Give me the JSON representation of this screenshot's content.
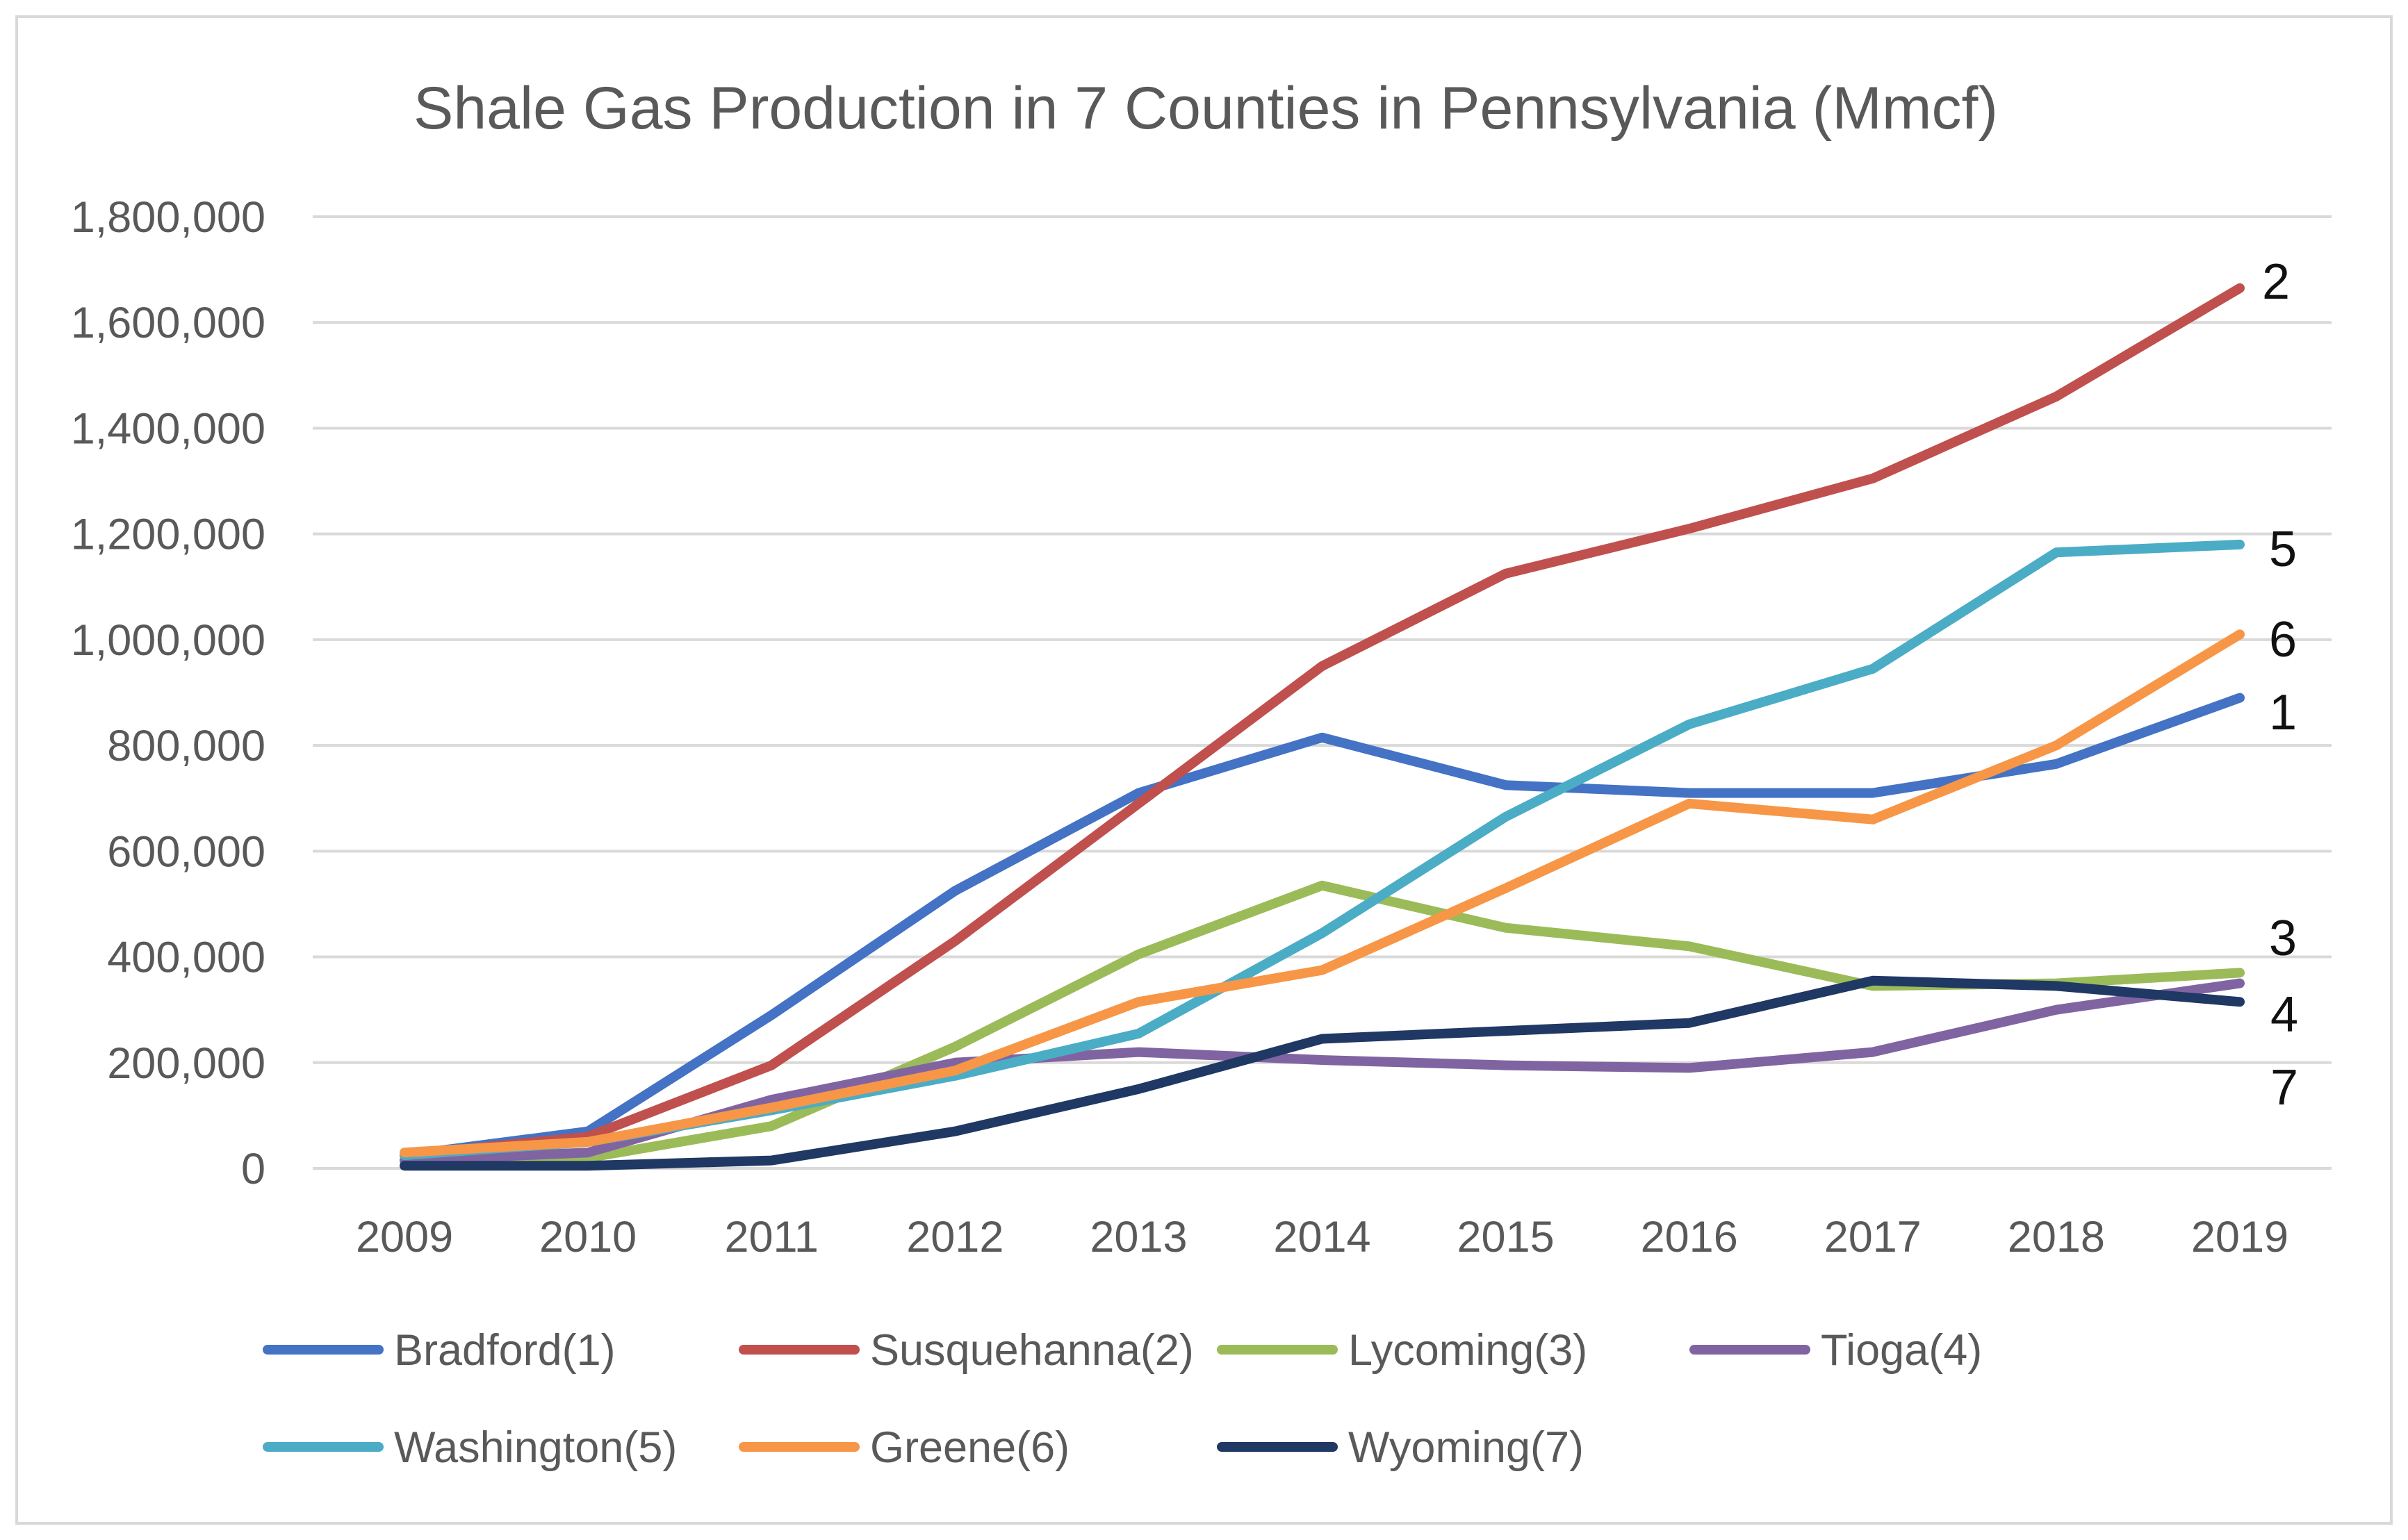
{
  "chart_data": {
    "type": "line",
    "title": "Shale Gas Production in 7 Counties in Pennsylvania (Mmcf)",
    "xlabel": "",
    "ylabel": "",
    "categories": [
      "2009",
      "2010",
      "2011",
      "2012",
      "2013",
      "2014",
      "2015",
      "2016",
      "2017",
      "2018",
      "2019"
    ],
    "ylim": [
      0,
      1800000
    ],
    "yticks": [
      0,
      200000,
      400000,
      600000,
      800000,
      1000000,
      1200000,
      1400000,
      1600000,
      1800000
    ],
    "ytick_labels": [
      "0",
      "200,000",
      "400,000",
      "600,000",
      "800,000",
      "1,000,000",
      "1,200,000",
      "1,400,000",
      "1,600,000",
      "1,800,000"
    ],
    "grid": true,
    "legend_position": "bottom",
    "series": [
      {
        "name": "Bradford(1)",
        "label": "1",
        "color": "#4472C4",
        "values": [
          25000,
          70000,
          290000,
          525000,
          710000,
          815000,
          725000,
          710000,
          710000,
          765000,
          890000
        ]
      },
      {
        "name": "Susquehanna(2)",
        "label": "2",
        "color": "#C0504D",
        "values": [
          25000,
          60000,
          195000,
          430000,
          690000,
          950000,
          1125000,
          1210000,
          1305000,
          1460000,
          1665000
        ]
      },
      {
        "name": "Lycoming(3)",
        "label": "3",
        "color": "#9BBB59",
        "values": [
          15000,
          20000,
          80000,
          230000,
          405000,
          535000,
          455000,
          420000,
          345000,
          350000,
          370000
        ]
      },
      {
        "name": "Tioga(4)",
        "label": "4",
        "color": "#8064A2",
        "values": [
          15000,
          30000,
          130000,
          200000,
          220000,
          205000,
          195000,
          190000,
          220000,
          300000,
          350000
        ]
      },
      {
        "name": "Washington(5)",
        "label": "5",
        "color": "#4BACC6",
        "values": [
          25000,
          50000,
          110000,
          175000,
          255000,
          445000,
          665000,
          840000,
          945000,
          1165000,
          1180000
        ]
      },
      {
        "name": "Greene(6)",
        "label": "6",
        "color": "#F79646",
        "values": [
          30000,
          50000,
          115000,
          185000,
          315000,
          375000,
          530000,
          690000,
          660000,
          800000,
          1010000
        ]
      },
      {
        "name": "Wyoming(7)",
        "label": "7",
        "color": "#1F3864",
        "values": [
          5000,
          5000,
          15000,
          70000,
          150000,
          245000,
          260000,
          275000,
          355000,
          345000,
          315000
        ]
      }
    ]
  }
}
